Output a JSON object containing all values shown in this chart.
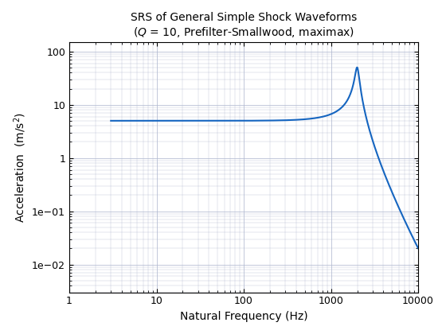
{
  "title_line1": "SRS of General Simple Shock Waveforms",
  "title_line2": "($Q$ = 10, Prefilter-Smallwood, maximax)",
  "xlabel": "Natural Frequency (Hz)",
  "ylabel": "Acceleration  (m/s$^2$)",
  "xlim": [
    1.0,
    10000.0
  ],
  "ylim": [
    0.003,
    150.0
  ],
  "line_color": "#1565C0",
  "line_width": 1.5,
  "background_color": "#ffffff",
  "grid_color": "#b0b8d0",
  "Q": 10,
  "A": 5.0,
  "fp": 2000.0,
  "f_start": 3.0,
  "f_end": 10000.0,
  "n_points": 1000
}
